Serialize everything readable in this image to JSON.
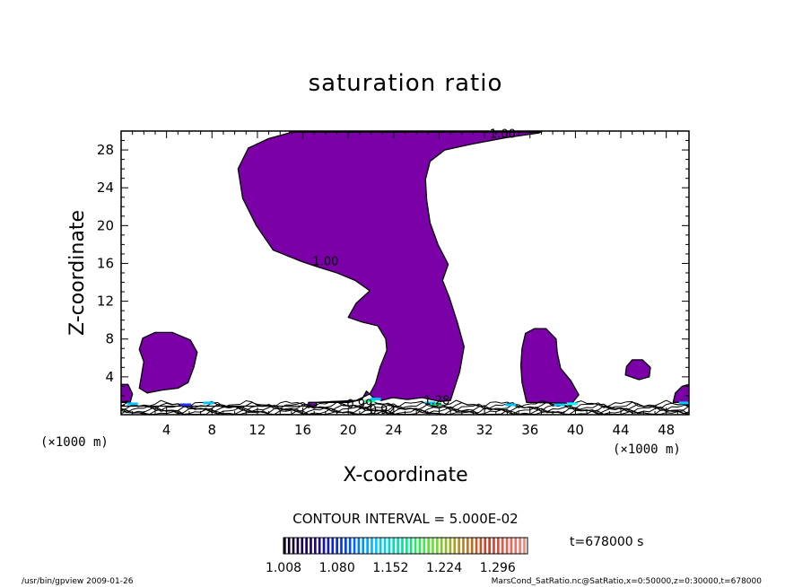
{
  "chart_data": {
    "type": "heatmap",
    "title": "saturation ratio",
    "xlabel": "X-coordinate",
    "ylabel": "Z-coordinate",
    "x_unit_left": "(×1000 m)",
    "x_unit_right": "(×1000 m)",
    "xlim": [
      0,
      50
    ],
    "ylim": [
      0,
      30
    ],
    "x_ticks": [
      4,
      8,
      12,
      16,
      20,
      24,
      28,
      32,
      36,
      40,
      44,
      48
    ],
    "y_ticks": [
      4,
      8,
      12,
      16,
      20,
      24,
      28
    ],
    "contour_interval_text": "CONTOUR INTERVAL = 5.000E-02",
    "time_text": "t=678000 s",
    "colorbar_ticks": [
      "1.008",
      "1.080",
      "1.152",
      "1.224",
      "1.296"
    ],
    "colorbar_range": [
      1.008,
      1.336
    ],
    "contour_labels": [
      {
        "text": "1.00",
        "x": 33.6,
        "z": 29.3
      },
      {
        "text": "1.00",
        "x": 18.0,
        "z": 15.8
      },
      {
        "text": "0.99",
        "x": 21.0,
        "z": 0.7
      },
      {
        "text": "0.92",
        "x": 23.0,
        "z": 0.1
      },
      {
        "text": "1.28",
        "x": 27.8,
        "z": 1.1
      }
    ],
    "regions": [
      {
        "name": "main-plume",
        "level": "1.00",
        "outline": [
          [
            0,
            0.9
          ],
          [
            0,
            0.9
          ],
          [
            16.5,
            0.9
          ],
          [
            16.5,
            1.3
          ],
          [
            20.1,
            1.3
          ],
          [
            21.2,
            1.6
          ],
          [
            21.6,
            2.5
          ],
          [
            22.2,
            1.8
          ],
          [
            22.9,
            1.5
          ],
          [
            23.9,
            1.8
          ],
          [
            25.2,
            1.6
          ],
          [
            26.5,
            1.8
          ],
          [
            28.1,
            1.4
          ],
          [
            29.0,
            1.5
          ],
          [
            29.8,
            4.5
          ],
          [
            30.2,
            7.2
          ],
          [
            29.6,
            9.8
          ],
          [
            28.9,
            12.4
          ],
          [
            28.3,
            14.2
          ],
          [
            28.8,
            15.9
          ],
          [
            27.9,
            18.0
          ],
          [
            27.2,
            20.3
          ],
          [
            26.9,
            22.7
          ],
          [
            26.8,
            24.9
          ],
          [
            27.2,
            26.8
          ],
          [
            28.5,
            28.0
          ],
          [
            30.8,
            28.6
          ],
          [
            33.9,
            29.3
          ],
          [
            36.8,
            29.8
          ],
          [
            37.1,
            30
          ],
          [
            14.9,
            30
          ],
          [
            14.8,
            29.8
          ],
          [
            13.0,
            29.2
          ],
          [
            11.2,
            28.2
          ],
          [
            10.3,
            26.0
          ],
          [
            10.7,
            22.9
          ],
          [
            11.9,
            20.0
          ],
          [
            13.4,
            17.4
          ],
          [
            15.9,
            16.2
          ],
          [
            17.4,
            15.6
          ],
          [
            19.0,
            15.0
          ],
          [
            20.6,
            14.2
          ],
          [
            21.9,
            13.1
          ],
          [
            20.7,
            11.8
          ],
          [
            20.0,
            10.3
          ],
          [
            21.2,
            9.8
          ],
          [
            22.6,
            9.4
          ],
          [
            23.3,
            8.0
          ],
          [
            23.4,
            6.8
          ],
          [
            22.8,
            5.0
          ],
          [
            22.4,
            3.3
          ],
          [
            21.9,
            2.2
          ],
          [
            20.7,
            1.5
          ],
          [
            17.2,
            1.3
          ],
          [
            17.2,
            0.9
          ]
        ]
      },
      {
        "name": "left-cell",
        "level": "1.00",
        "outline": [
          [
            1.6,
            2.8
          ],
          [
            2.3,
            2.3
          ],
          [
            3.6,
            2.6
          ],
          [
            5.0,
            2.8
          ],
          [
            5.9,
            3.4
          ],
          [
            6.4,
            5.0
          ],
          [
            6.7,
            6.6
          ],
          [
            6.1,
            7.9
          ],
          [
            4.5,
            8.7
          ],
          [
            3.0,
            8.7
          ],
          [
            1.9,
            8.1
          ],
          [
            1.6,
            6.9
          ],
          [
            2.0,
            5.6
          ],
          [
            1.8,
            4.2
          ]
        ]
      },
      {
        "name": "right-cell",
        "level": "1.00",
        "outline": [
          [
            35.7,
            1.3
          ],
          [
            39.7,
            1.2
          ],
          [
            40.3,
            2.1
          ],
          [
            39.6,
            3.6
          ],
          [
            38.7,
            4.9
          ],
          [
            38.4,
            6.6
          ],
          [
            38.3,
            8.0
          ],
          [
            37.4,
            9.1
          ],
          [
            36.4,
            9.1
          ],
          [
            35.6,
            8.6
          ],
          [
            35.3,
            7.0
          ],
          [
            35.2,
            5.2
          ],
          [
            35.3,
            3.4
          ]
        ]
      },
      {
        "name": "small-cell-right",
        "level": "1.00",
        "outline": [
          [
            44.4,
            4.2
          ],
          [
            45.6,
            3.7
          ],
          [
            46.5,
            4.0
          ],
          [
            46.6,
            5.0
          ],
          [
            45.9,
            5.8
          ],
          [
            45.0,
            5.8
          ],
          [
            44.5,
            5.1
          ]
        ]
      },
      {
        "name": "edge-cell-right",
        "level": "1.00",
        "outline": [
          [
            48.6,
            1.3
          ],
          [
            50,
            1.3
          ],
          [
            50,
            3.2
          ],
          [
            49.4,
            3.0
          ],
          [
            48.8,
            2.3
          ]
        ]
      },
      {
        "name": "edge-cell-left",
        "level": "1.00",
        "outline": [
          [
            0,
            1.3
          ],
          [
            0.8,
            1.3
          ],
          [
            1.0,
            2.2
          ],
          [
            0.6,
            3.2
          ],
          [
            0,
            3.2
          ]
        ]
      },
      {
        "name": "top-strip",
        "level": "1.00",
        "outline": [
          [
            15.0,
            30
          ],
          [
            37.0,
            30
          ],
          [
            36.9,
            29.9
          ],
          [
            15.1,
            29.9
          ]
        ]
      }
    ]
  },
  "footer": {
    "left_text": "/usr/bin/gpview  2009-01-26",
    "right_text": "MarsCond_SatRatio.nc@SatRatio,x=0:50000,z=0:30000,t=678000"
  }
}
